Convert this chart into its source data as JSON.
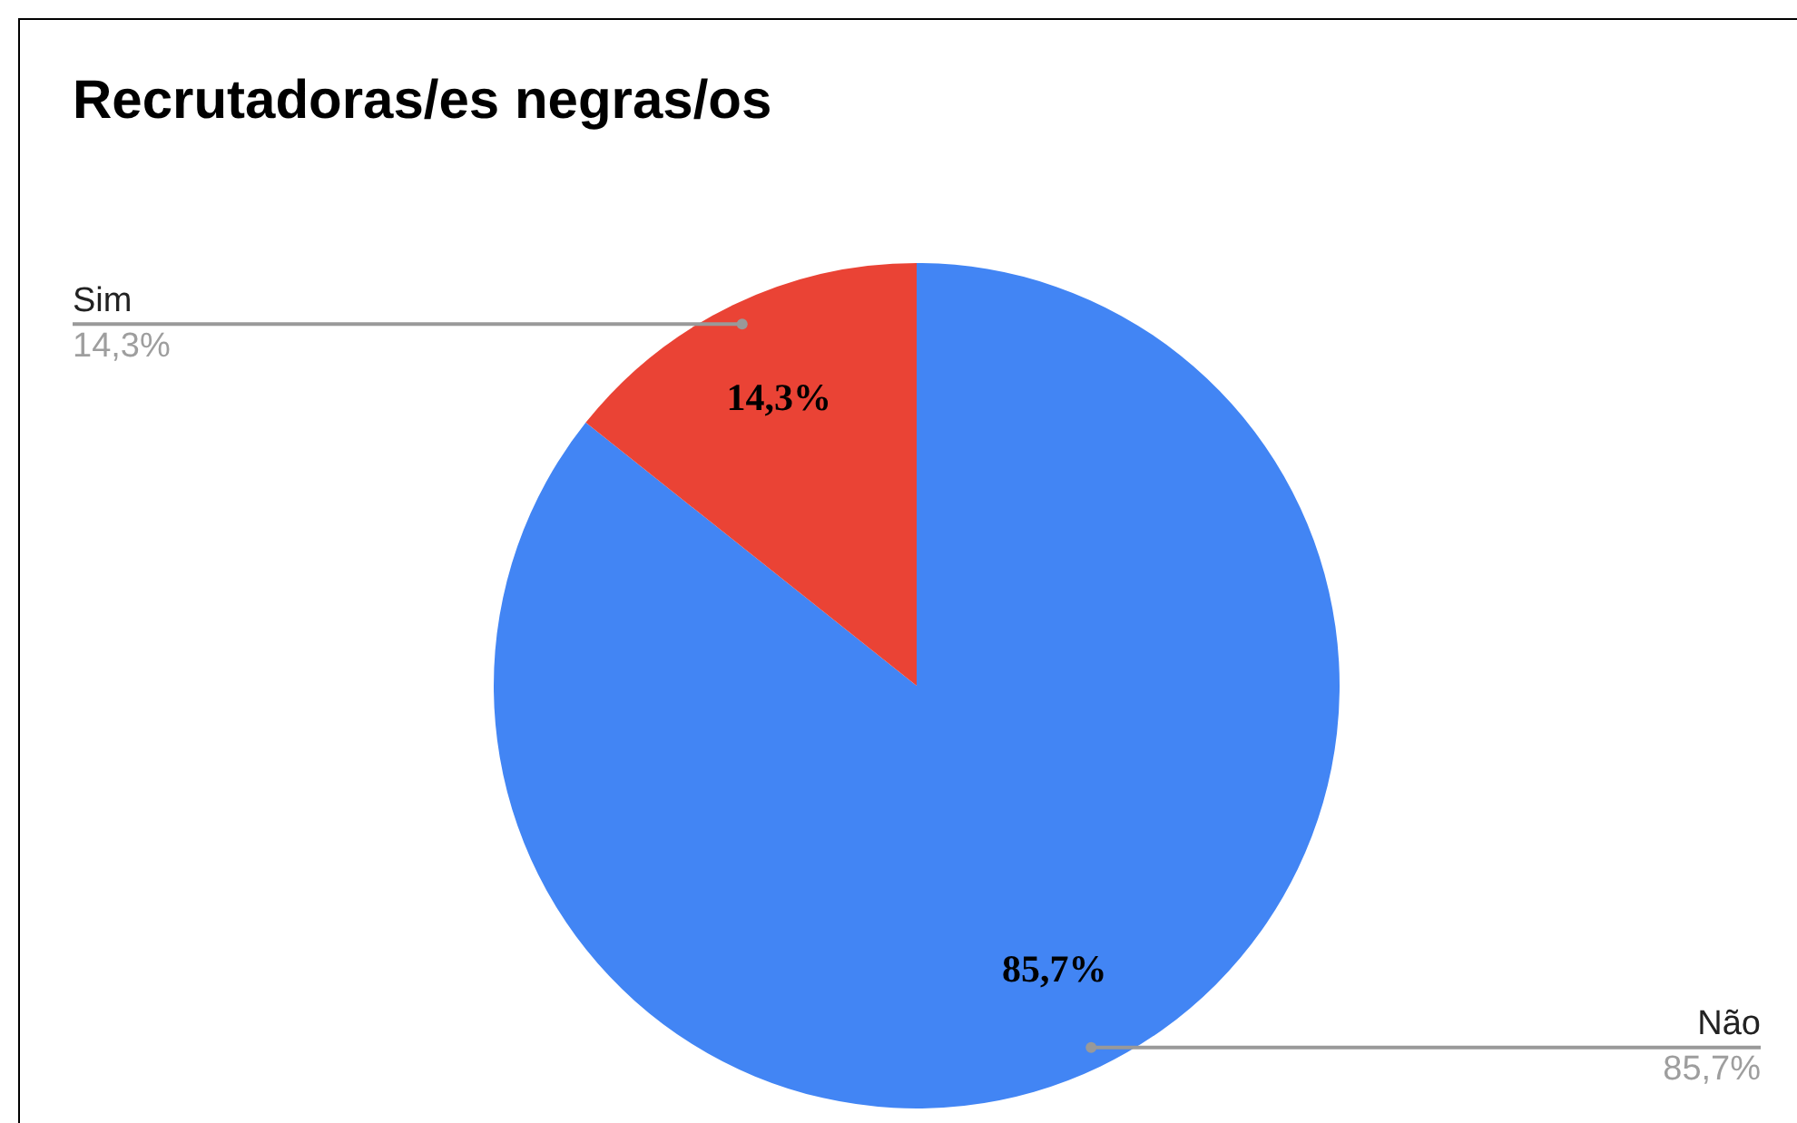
{
  "chart_data": {
    "type": "pie",
    "title": "Recrutadoras/es negras/os",
    "categories": [
      "Não",
      "Sim"
    ],
    "values": [
      85.7,
      14.3
    ],
    "colors": [
      "#4285f4",
      "#ea4335"
    ],
    "value_labels": [
      "85,7%",
      "14,3%"
    ],
    "legend": false
  }
}
